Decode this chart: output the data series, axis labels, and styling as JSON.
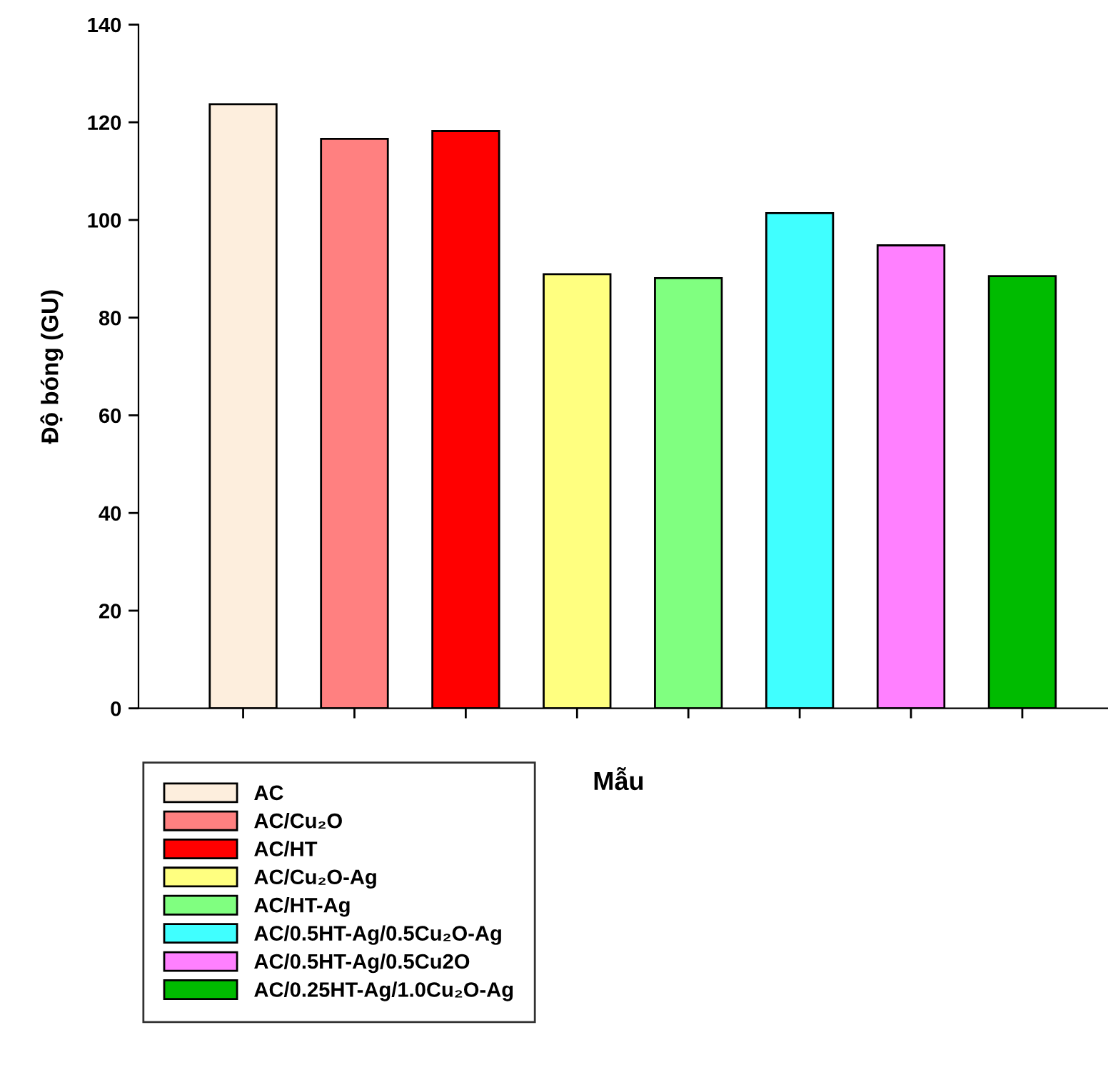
{
  "chart_data": {
    "type": "bar",
    "ylabel": "Độ bóng (GU)",
    "xlabel": "Mẫu",
    "categories": [
      null,
      null,
      null,
      null,
      null,
      null,
      null,
      null
    ],
    "series": [
      {
        "name": "AC",
        "color": "#fdeedd",
        "values": [
          123.7,
          null,
          null,
          null,
          null,
          null,
          null,
          null
        ]
      },
      {
        "name": "AC/Cu₂O",
        "color": "#ff8080",
        "values": [
          null,
          116.6,
          null,
          null,
          null,
          null,
          null,
          null
        ]
      },
      {
        "name": "AC/HT",
        "color": "#ff0000",
        "values": [
          null,
          null,
          118.2,
          null,
          null,
          null,
          null,
          null
        ]
      },
      {
        "name": "AC/Cu₂O-Ag",
        "color": "#ffff80",
        "values": [
          null,
          null,
          null,
          88.9,
          null,
          null,
          null,
          null
        ]
      },
      {
        "name": "AC/HT-Ag",
        "color": "#80ff80",
        "values": [
          null,
          null,
          null,
          null,
          88.1,
          null,
          null,
          null
        ]
      },
      {
        "name": "AC/0.5HT-Ag/0.5Cu₂O-Ag",
        "color": "#40ffff",
        "values": [
          null,
          null,
          null,
          null,
          null,
          101.4,
          null,
          null
        ]
      },
      {
        "name": "AC/0.5HT-Ag/0.5Cu2O",
        "color": "#ff80ff",
        "values": [
          null,
          null,
          null,
          null,
          null,
          null,
          94.8,
          null
        ]
      },
      {
        "name": "AC/0.25HT-Ag/1.0Cu₂O-Ag",
        "color": "#00bb00",
        "values": [
          null,
          null,
          null,
          null,
          null,
          null,
          null,
          88.5
        ]
      }
    ],
    "ylim": [
      0,
      140
    ],
    "yticks": [
      0,
      20,
      40,
      60,
      80,
      100,
      120,
      140
    ],
    "tick_labels": "y",
    "grid": false,
    "legend": "bottom left"
  }
}
